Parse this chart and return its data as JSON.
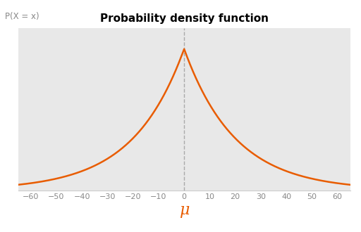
{
  "title": "Probability density function",
  "ylabel": "P(X = x)",
  "xlabel": "μ",
  "mu": 0,
  "b": 20,
  "x_min": -65,
  "x_max": 65,
  "x_ticks": [
    -60,
    -50,
    -40,
    -30,
    -20,
    -10,
    0,
    10,
    20,
    30,
    40,
    50,
    60
  ],
  "line_color": "#E85C00",
  "dashed_line_color": "#aaaaaa",
  "background_color": "#E8E8E8",
  "fig_background": "#ffffff",
  "title_fontsize": 11,
  "ylabel_fontsize": 8.5,
  "xlabel_fontsize": 16,
  "xlabel_color": "#E85C00",
  "tick_color": "#888888",
  "tick_fontsize": 8
}
